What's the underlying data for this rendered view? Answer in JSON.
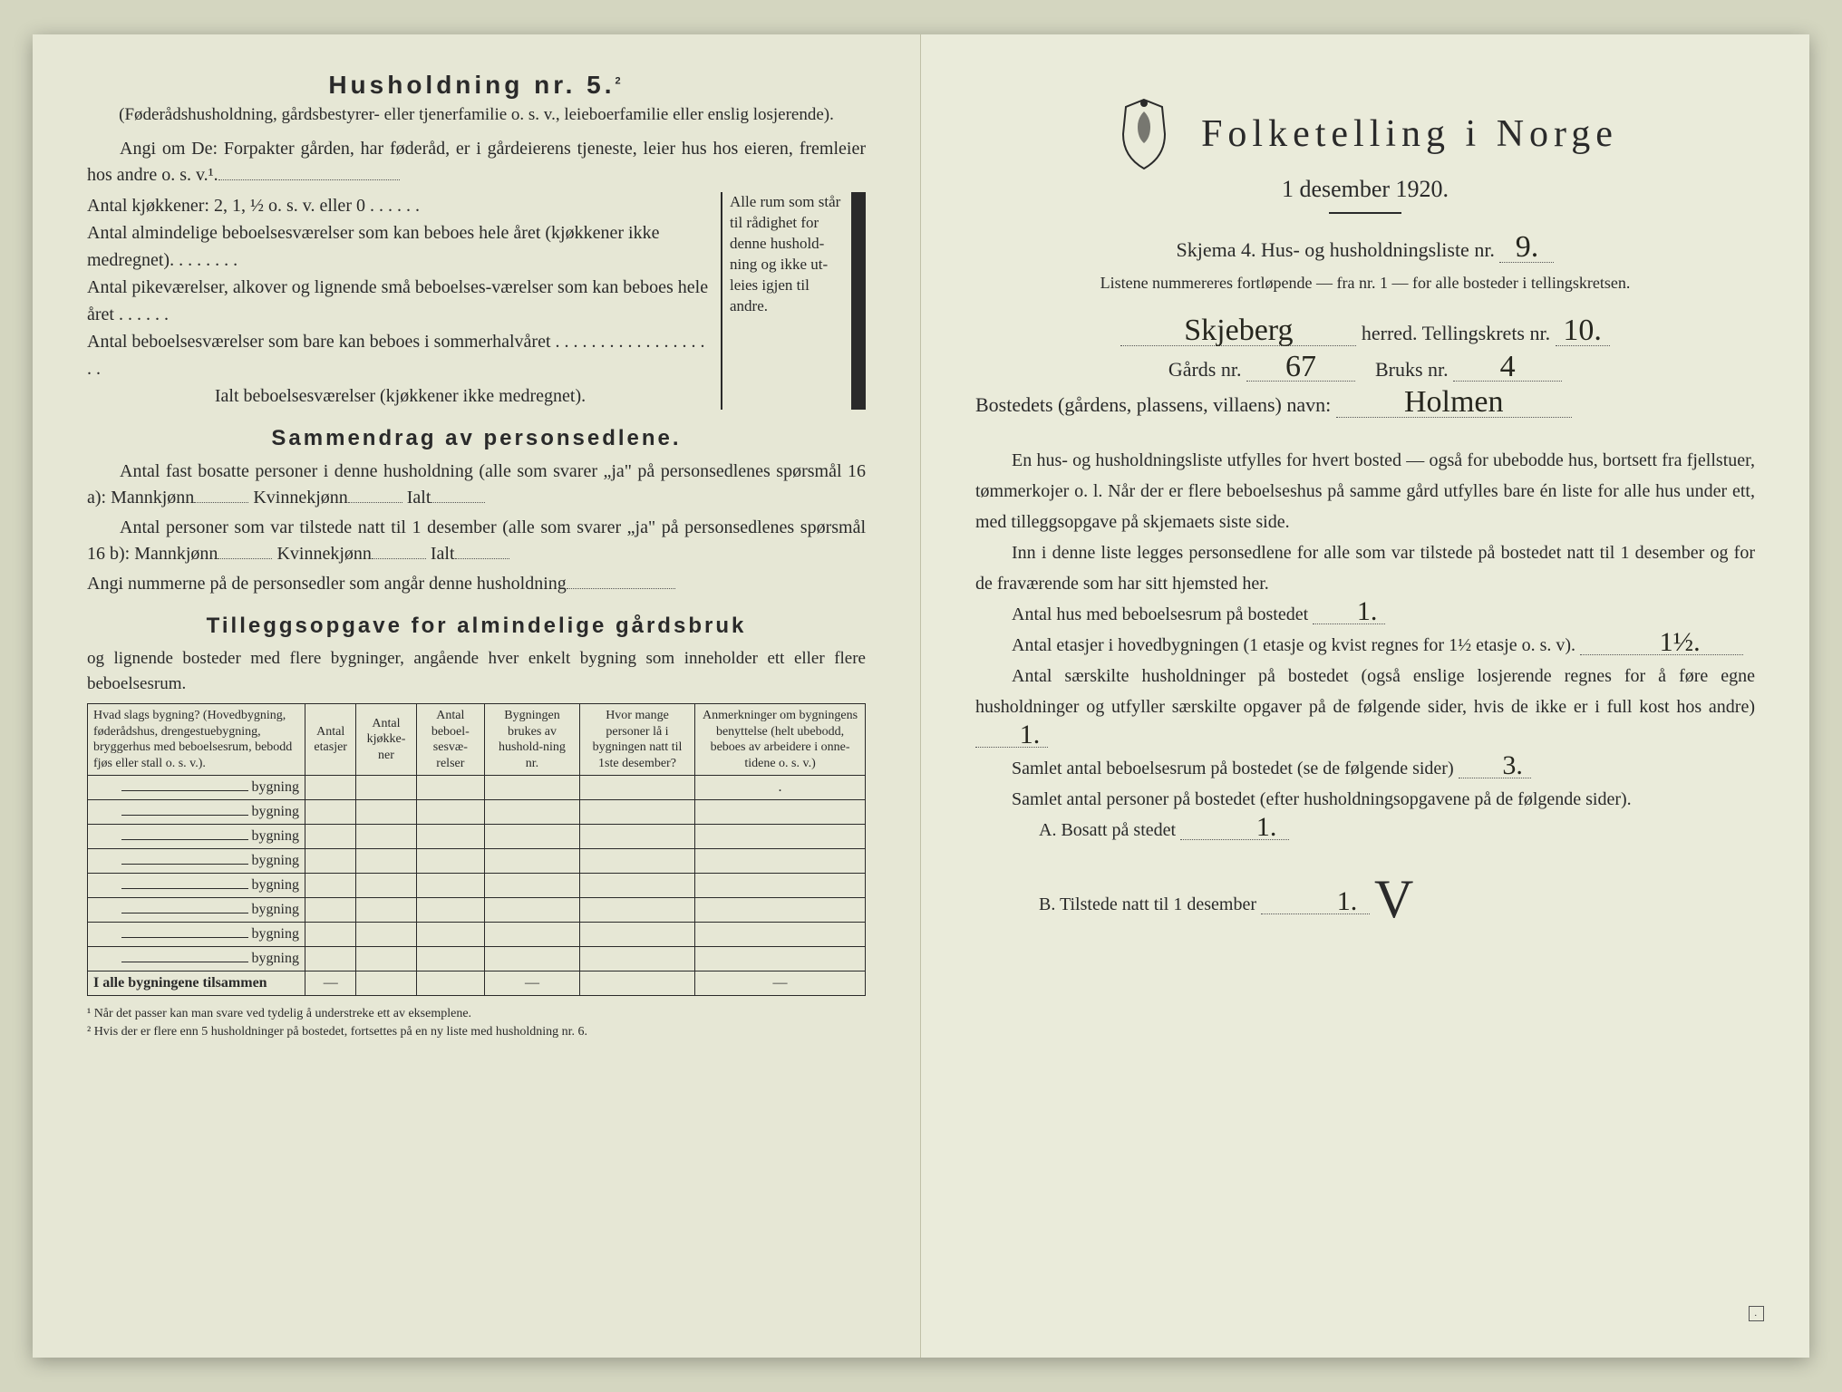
{
  "left": {
    "title": "Husholdning nr. 5.",
    "title_sup": "2",
    "sub": "(Føderådshusholdning, gårdsbestyrer- eller tjenerfamilie o. s. v., leieboerfamilie eller enslig losjerende).",
    "para1": "Angi om De: Forpakter gården, har føderåd, er i gårdeierens tjeneste, leier hus hos eieren, fremleier hos andre o. s. v.¹.",
    "antal_rows": [
      "Antal kjøkkener: 2, 1, ½ o. s. v. eller 0 . . . . . .",
      "Antal almindelige beboelsesværelser som kan beboes hele året (kjøkkener ikke medregnet). . . . . . . .",
      "Antal pikeværelser, alkover og lignende små beboelses-værelser som kan beboes hele året . . . . . .",
      "Antal beboelsesværelser som bare kan beboes i sommerhalvåret . . . . . . . . . . . . . . . . . . .",
      "Ialt beboelsesværelser  (kjøkkener ikke medregnet)."
    ],
    "brace_text": "Alle rum som står til rådighet for denne hushold-ning og ikke ut-leies igjen til andre.",
    "section_summary": "Sammendrag av personsedlene.",
    "sum1a": "Antal fast bosatte personer i denne husholdning (alle som svarer „ja\" på personsedlenes spørsmål 16 a): Mannkjønn",
    "sum1b": "Kvinnekjønn",
    "sum1c": "Ialt",
    "sum2a": "Antal personer som var tilstede natt til 1 desember (alle som svarer „ja\" på personsedlenes spørsmål 16 b): Mannkjønn",
    "angi": "Angi nummerne på de personsedler som angår denne husholdning",
    "section_extra": "Tilleggsopgave for almindelige gårdsbruk",
    "extra_sub": "og lignende bosteder med flere bygninger, angående hver enkelt bygning som inneholder ett eller flere beboelsesrum.",
    "table": {
      "headers": [
        "Hvad slags bygning?\n(Hovedbygning, føderådshus, drengestuebygning, bryggerhus med beboelsesrum, bebodd fjøs eller stall o. s. v.).",
        "Antal etasjer",
        "Antal kjøkke-ner",
        "Antal beboel-sesvæ-relser",
        "Bygningen brukes av hushold-ning nr.",
        "Hvor mange personer lå i bygningen natt til 1ste desember?",
        "Anmerkninger om bygningens benyttelse (helt ubebodd, beboes av arbeidere i onne-tidene o. s. v.)"
      ],
      "row_label": "bygning",
      "rows": 8,
      "sum_row": "I alle bygningene tilsammen"
    },
    "footnote1": "¹  Når det passer kan man svare ved tydelig å understreke ett av eksemplene.",
    "footnote2": "²  Hvis der er flere enn 5 husholdninger på bostedet, fortsettes på en ny liste med husholdning nr. 6."
  },
  "right": {
    "title": "Folketelling  i  Norge",
    "date": "1 desember 1920.",
    "skjema": "Skjema 4.  Hus- og husholdningsliste nr.",
    "list_nr": "9.",
    "listene": "Listene nummereres fortløpende — fra nr. 1 — for alle bosteder i tellingskretsen.",
    "herred_label": "herred.   Tellingskrets nr.",
    "herred_value": "Skjeberg",
    "krets_nr": "10.",
    "gards_label": "Gårds nr.",
    "gards_nr": "67",
    "bruks_label": "Bruks nr.",
    "bruks_nr": "4",
    "bosted_label": "Bostedets (gårdens, plassens, villaens) navn:",
    "bosted_value": "Holmen",
    "body1": "En hus- og husholdningsliste utfylles for hvert bosted — også for ubebodde hus, bortsett fra fjellstuer, tømmerkojer o. l.  Når der er flere beboelseshus på samme gård utfylles bare én liste for alle hus under ett, med tilleggsopgave på skjemaets siste side.",
    "body2": "Inn i denne liste legges personsedlene for alle som var tilstede på bostedet natt til 1 desember og for de fraværende som har sitt hjemsted her.",
    "q1": "Antal hus med beboelsesrum på bostedet",
    "q1v": "1.",
    "q2": "Antal etasjer i hovedbygningen (1 etasje og kvist regnes for 1½ etasje o. s. v).",
    "q2v": "1½.",
    "q3": "Antal særskilte husholdninger på bostedet (også enslige losjerende regnes for å føre egne husholdninger og utfyller særskilte opgaver på de følgende sider, hvis de ikke er i full kost hos andre)",
    "q3v": "1.",
    "q4": "Samlet antal beboelsesrum på bostedet (se de følgende sider)",
    "q4v": "3.",
    "q5": "Samlet antal personer på bostedet (efter husholdningsopgavene på de følgende sider).",
    "qA": "A.  Bosatt på stedet",
    "qAv": "1.",
    "qB": "B.  Tilstede natt til 1 desember",
    "qBv": "1.",
    "checkmark": "V",
    "stamp": "."
  },
  "colors": {
    "paper": "#e8e8d8",
    "ink": "#2a2a2a",
    "handwriting": "#26261e"
  }
}
